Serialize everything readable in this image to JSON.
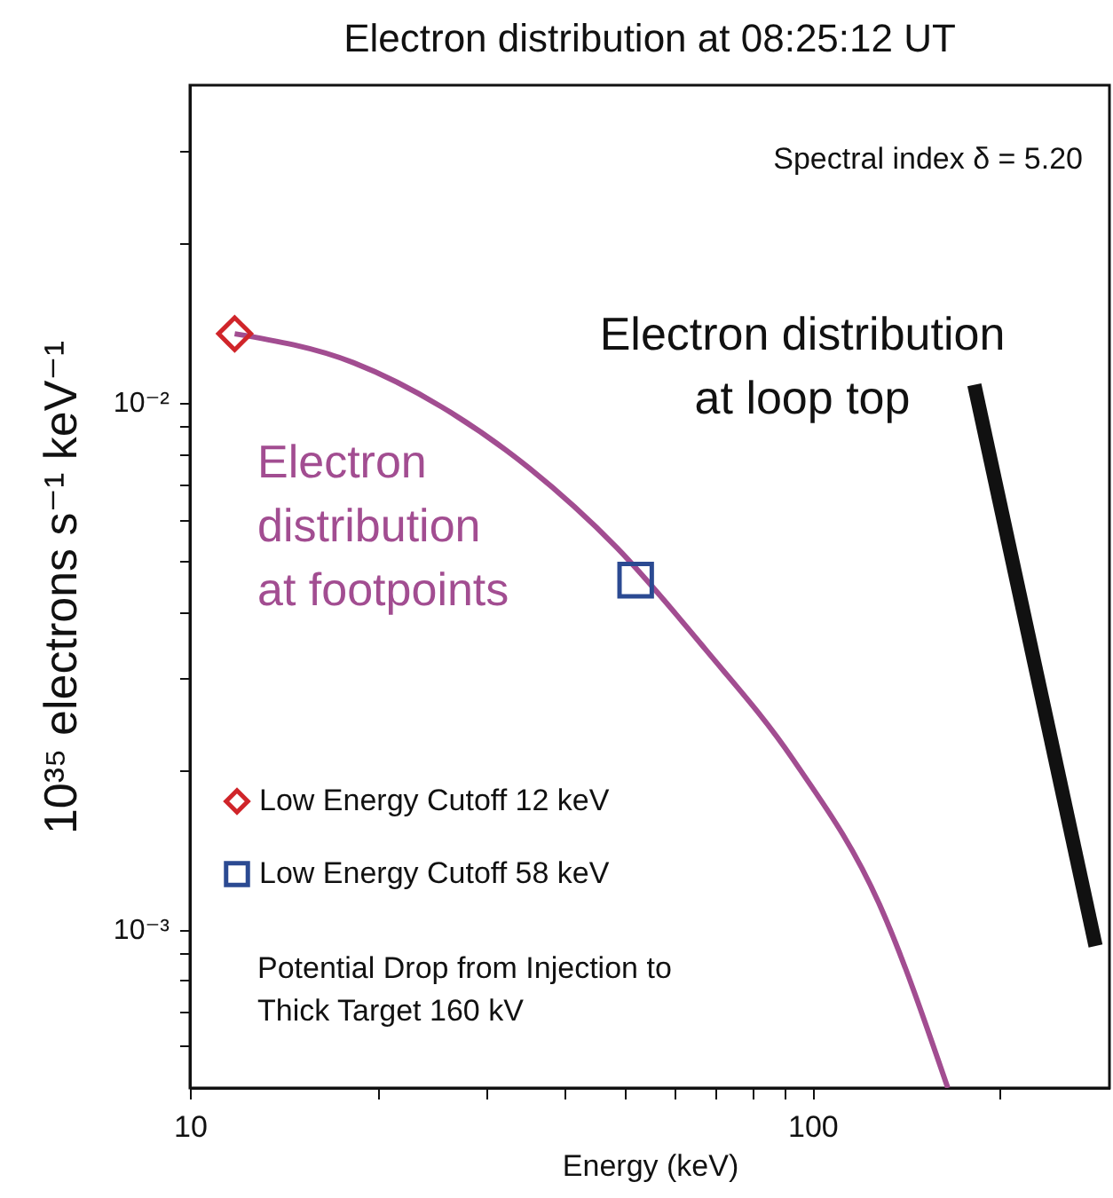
{
  "chart_data": {
    "type": "line",
    "title": "Electron distribution at 08:25:12 UT",
    "xlabel": "Energy (keV)",
    "ylabel": "10³⁵ electrons s⁻¹ keV⁻¹",
    "log": "xy",
    "grid": false,
    "legend": "bottom left",
    "xlim": [
      10,
      300
    ],
    "xticks": [
      10,
      {
        "value": 20,
        "label": null
      },
      {
        "value": 30,
        "label": null
      },
      {
        "value": 40,
        "label": null
      },
      {
        "value": 50,
        "label": null
      },
      {
        "value": 60,
        "label": null
      },
      {
        "value": 70,
        "label": null
      },
      {
        "value": 80,
        "label": null
      },
      {
        "value": 90,
        "label": null
      },
      100,
      {
        "value": 200,
        "label": null
      }
    ],
    "ylim": [
      0.0005,
      0.04
    ],
    "yticks": [
      {
        "value": 0.0006,
        "label": null
      },
      {
        "value": 0.0007,
        "label": null
      },
      {
        "value": 0.0008,
        "label": null
      },
      {
        "value": 0.0009,
        "label": null
      },
      {
        "value": 0.001,
        "label": "10⁻³"
      },
      {
        "value": 0.002,
        "label": null
      },
      {
        "value": 0.003,
        "label": null
      },
      {
        "value": 0.004,
        "label": null
      },
      {
        "value": 0.005,
        "label": null
      },
      {
        "value": 0.006,
        "label": null
      },
      {
        "value": 0.007,
        "label": null
      },
      {
        "value": 0.008,
        "label": null
      },
      {
        "value": 0.009,
        "label": null
      },
      {
        "value": 0.01,
        "label": "10⁻²"
      },
      {
        "value": 0.02,
        "label": null
      },
      {
        "value": 0.03,
        "label": null
      }
    ],
    "series": [
      {
        "name": "Electron distribution at footpoints",
        "color": "#a24d91",
        "x": [
          11.8,
          18.3,
          25.4,
          35.1,
          48.5,
          67.3,
          93.1,
          128.8,
          165
        ],
        "values": [
          0.0135,
          0.0119,
          0.0098,
          0.0075,
          0.0053,
          0.0034,
          0.0021,
          0.0011,
          0.0005
        ]
      },
      {
        "name": "Electron distribution at loop top",
        "color": "#111111",
        "x": [
          182,
          285
        ],
        "values": [
          0.0108,
          0.00093
        ]
      },
      {
        "name": "Low Energy Cutoff 12 keV",
        "type": "scatter",
        "marker": "diamond",
        "color": "#d0252a",
        "x": [
          11.8
        ],
        "values": [
          0.0135
        ]
      },
      {
        "name": "Low Energy Cutoff 58 keV",
        "type": "scatter",
        "marker": "square",
        "color": "#2b4a92",
        "x": [
          52
        ],
        "values": [
          0.0046
        ]
      }
    ],
    "annotations": [
      "Spectral index δ = 5.20",
      "Potential Drop from Injection to Thick Target 160 kV"
    ]
  }
}
